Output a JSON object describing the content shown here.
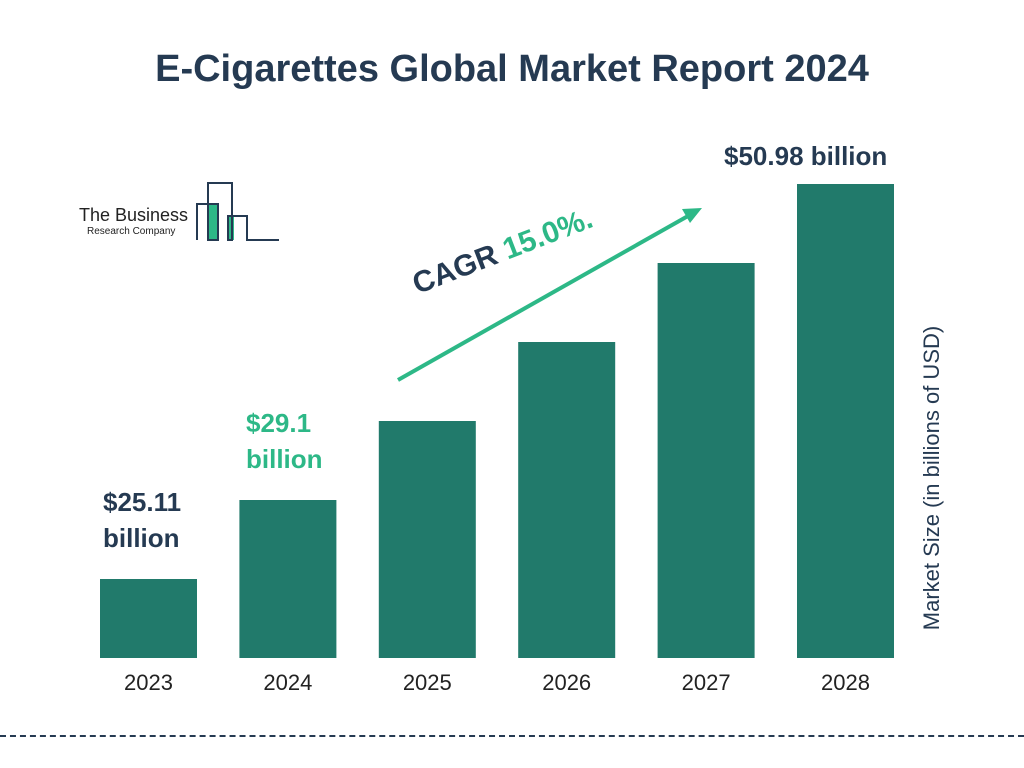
{
  "title": "E-Cigarettes Global Market Report 2024",
  "logo": {
    "line1": "The Business",
    "line2": "Research Company"
  },
  "chart_data": {
    "type": "bar",
    "title": "E-Cigarettes Global Market Report 2024",
    "categories": [
      "2023",
      "2024",
      "2025",
      "2026",
      "2027",
      "2028"
    ],
    "values": [
      25.11,
      29.1,
      null,
      null,
      null,
      50.98
    ],
    "ylabel": "Market Size (in billions of USD)",
    "xlabel": "",
    "grid": false,
    "data_labels": {
      "2023": "$25.11 billion",
      "2024": "$29.1 billion",
      "2028": "$50.98 billion"
    },
    "annotation": {
      "prefix": "CAGR",
      "value": "15.0%."
    },
    "colors": {
      "bar": "#217a6b",
      "title": "#253a52",
      "accent": "#2db887"
    }
  }
}
